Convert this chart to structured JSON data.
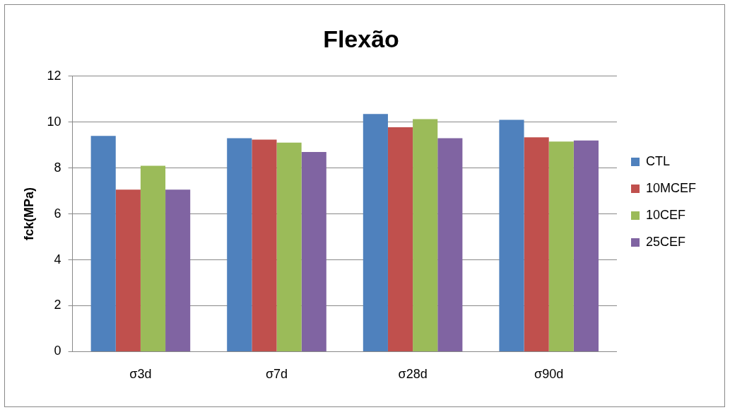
{
  "chart_data": {
    "type": "bar",
    "title": "Flexão",
    "ylabel": "fck(MPa)",
    "categories": [
      "σ3d",
      "σ7d",
      "σ28d",
      "σ90d"
    ],
    "series": [
      {
        "name": "CTL",
        "color": "#4f81bd",
        "values": [
          9.4,
          9.3,
          10.35,
          10.1
        ]
      },
      {
        "name": "10MCEF",
        "color": "#c0504d",
        "values": [
          7.06,
          9.24,
          9.78,
          9.34
        ]
      },
      {
        "name": "10CEF",
        "color": "#9bbb59",
        "values": [
          8.1,
          9.11,
          10.13,
          9.15
        ]
      },
      {
        "name": "25CEF",
        "color": "#8064a2",
        "values": [
          7.06,
          8.7,
          9.3,
          9.2
        ]
      }
    ],
    "ylim": [
      0,
      12
    ],
    "yticks": [
      0,
      2,
      4,
      6,
      8,
      10,
      12
    ],
    "grid": "y",
    "legend": "right"
  }
}
